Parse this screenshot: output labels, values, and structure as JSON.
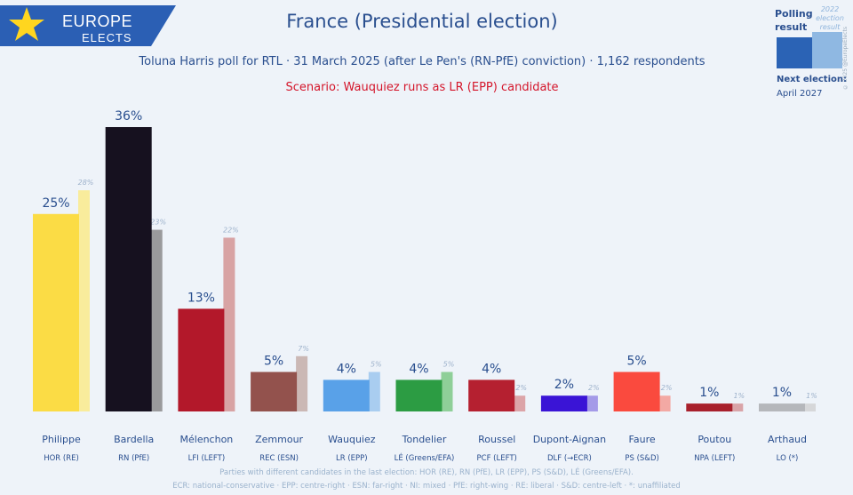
{
  "header": {
    "logo_line1": "EUROPE",
    "logo_line2": "ELECTS",
    "title": "France (Presidential election)",
    "subtitle": "Toluna Harris poll for RTL · 31 March 2025 (after Le Pen's (RN-PfE) conviction) · 1,162 respondents",
    "scenario": "Scenario: Wauquiez runs as LR (EPP) candidate"
  },
  "legend": {
    "polling_line1": "Polling",
    "polling_line2": "result",
    "prev_line1": "2022",
    "prev_line2": "election",
    "prev_line3": "result",
    "copyright": "© 2025 @EuropeElects",
    "next_label": "Next election:",
    "next_date": "April 2027"
  },
  "chart_data": {
    "type": "bar",
    "title": "France (Presidential election)",
    "ylim": [
      0,
      36
    ],
    "categories": [
      "Philippe",
      "Bardella",
      "Mélenchon",
      "Zemmour",
      "Wauquiez",
      "Tondelier",
      "Roussel",
      "Dupont-Aignan",
      "Faure",
      "Poutou",
      "Arthaud"
    ],
    "parties": [
      "HOR (RE)",
      "RN (PfE)",
      "LFI (LEFT)",
      "REC (ESN)",
      "LR (EPP)",
      "LÉ (Greens/EFA)",
      "PCF (LEFT)",
      "DLF (→ECR)",
      "PS (S&D)",
      "NPA (LEFT)",
      "LO (*)"
    ],
    "series": [
      {
        "name": "Polling result",
        "values": [
          25,
          36,
          13,
          5,
          4,
          4,
          4,
          2,
          5,
          1,
          1
        ],
        "labels": [
          "25%",
          "36%",
          "13%",
          "5%",
          "4%",
          "4%",
          "4%",
          "2%",
          "5%",
          "1%",
          "1%"
        ]
      },
      {
        "name": "2022 election result",
        "values": [
          28,
          23,
          22,
          7,
          5,
          5,
          2,
          2,
          2,
          1,
          1
        ],
        "labels": [
          "28%",
          "23%",
          "22%",
          "7%",
          "5%",
          "5%",
          "2%",
          "2%",
          "2%",
          "1%",
          "1%"
        ]
      }
    ],
    "colors": [
      "#fbdc45",
      "#16111f",
      "#b3182a",
      "#93524d",
      "#59a1e8",
      "#2c9c43",
      "#b52030",
      "#3a14d6",
      "#fa4a3e",
      "#a8202c",
      "#b5b7bb"
    ],
    "prev_colors": [
      "#f9ec9c",
      "#9a9a9c",
      "#d8a3a4",
      "#cbb8b5",
      "#a9cdf0",
      "#8fcf98",
      "#dca4a8",
      "#a49ae8",
      "#f3a9a4",
      "#d9a4a8",
      "#d6d7d9"
    ]
  },
  "footnotes": {
    "line1": "Parties with different candidates in the last election: HOR (RE), RN (PfE), LR (EPP), PS (S&D), LÉ (Greens/EFA).",
    "line2": "ECR: national-conservative · EPP: centre-right · ESN: far-right · NI: mixed · PfE: right-wing · RE: liberal · S&D: centre-left · *: unaffiliated"
  }
}
